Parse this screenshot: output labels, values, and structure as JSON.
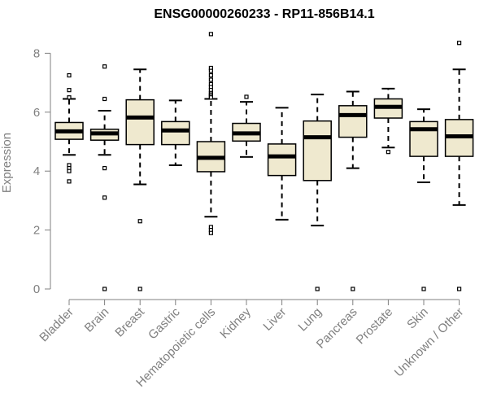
{
  "chart_data": {
    "type": "boxplot",
    "title": "ENSG00000260233 - RP11-856B14.1",
    "xlabel": "",
    "ylabel": "Expression",
    "ylim": [
      0,
      8.7
    ],
    "yticks": [
      0,
      2,
      4,
      6,
      8
    ],
    "grid": false,
    "box_fill": "#efe9cf",
    "line_color": "#000000",
    "axis_color": "#808080",
    "categories": [
      "Bladder",
      "Brain",
      "Breast",
      "Gastric",
      "Hematopoietic cells",
      "Kidney",
      "Liver",
      "Lung",
      "Pancreas",
      "Prostate",
      "Skin",
      "Unknown / Other"
    ],
    "boxes": [
      {
        "whisker_low": 4.55,
        "q1": 5.08,
        "median": 5.35,
        "q3": 5.65,
        "whisker_high": 6.45,
        "outliers": [
          7.25,
          6.75,
          6.5,
          4.2,
          4.1,
          4.0,
          3.65
        ]
      },
      {
        "whisker_low": 4.55,
        "q1": 5.05,
        "median": 5.28,
        "q3": 5.42,
        "whisker_high": 6.05,
        "outliers": [
          7.55,
          6.45,
          4.1,
          3.1,
          0.0
        ]
      },
      {
        "whisker_low": 3.55,
        "q1": 4.9,
        "median": 5.82,
        "q3": 6.42,
        "whisker_high": 7.45,
        "outliers": [
          2.3,
          0.0
        ]
      },
      {
        "whisker_low": 4.2,
        "q1": 4.9,
        "median": 5.38,
        "q3": 5.68,
        "whisker_high": 6.4,
        "outliers": []
      },
      {
        "whisker_low": 2.45,
        "q1": 3.98,
        "median": 4.45,
        "q3": 5.0,
        "whisker_high": 6.45,
        "outliers": [
          8.65,
          7.5,
          7.4,
          7.25,
          7.1,
          6.95,
          6.85,
          6.75,
          6.65,
          6.6,
          6.55,
          6.5,
          2.1,
          2.0,
          1.9
        ]
      },
      {
        "whisker_low": 4.48,
        "q1": 5.02,
        "median": 5.28,
        "q3": 5.62,
        "whisker_high": 6.35,
        "outliers": [
          6.52
        ]
      },
      {
        "whisker_low": 2.35,
        "q1": 3.85,
        "median": 4.5,
        "q3": 4.92,
        "whisker_high": 6.15,
        "outliers": []
      },
      {
        "whisker_low": 2.15,
        "q1": 3.68,
        "median": 5.15,
        "q3": 5.7,
        "whisker_high": 6.6,
        "outliers": [
          0.0
        ]
      },
      {
        "whisker_low": 4.1,
        "q1": 5.15,
        "median": 5.9,
        "q3": 6.22,
        "whisker_high": 6.7,
        "outliers": [
          0.0
        ]
      },
      {
        "whisker_low": 4.8,
        "q1": 5.8,
        "median": 6.18,
        "q3": 6.45,
        "whisker_high": 6.8,
        "outliers": [
          4.65
        ]
      },
      {
        "whisker_low": 3.62,
        "q1": 4.5,
        "median": 5.42,
        "q3": 5.68,
        "whisker_high": 6.1,
        "outliers": [
          0.0
        ]
      },
      {
        "whisker_low": 2.85,
        "q1": 4.5,
        "median": 5.18,
        "q3": 5.75,
        "whisker_high": 7.45,
        "outliers": [
          8.35,
          0.0
        ]
      }
    ]
  }
}
